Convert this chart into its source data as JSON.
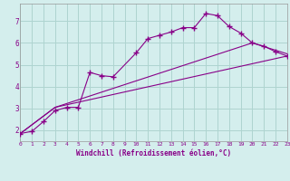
{
  "background_color": "#d4eeed",
  "grid_color": "#aed4d0",
  "line_color": "#880088",
  "marker": "+",
  "xlabel": "Windchill (Refroidissement éolien,°C)",
  "xlim": [
    0,
    23
  ],
  "ylim": [
    1.5,
    7.8
  ],
  "yticks": [
    2,
    3,
    4,
    5,
    6,
    7
  ],
  "xticks": [
    0,
    1,
    2,
    3,
    4,
    5,
    6,
    7,
    8,
    9,
    10,
    11,
    12,
    13,
    14,
    15,
    16,
    17,
    18,
    19,
    20,
    21,
    22,
    23
  ],
  "series1_x": [
    0,
    1,
    2,
    3,
    4,
    5,
    6,
    7,
    8,
    10,
    11,
    12,
    13,
    14,
    15,
    16,
    17,
    18,
    19,
    20,
    21,
    22,
    23
  ],
  "series1_y": [
    1.85,
    1.95,
    2.4,
    2.9,
    3.05,
    3.05,
    4.65,
    4.5,
    4.45,
    5.55,
    6.2,
    6.35,
    6.5,
    6.7,
    6.7,
    7.35,
    7.25,
    6.75,
    6.45,
    6.0,
    5.85,
    5.6,
    5.4
  ],
  "series2_x": [
    0,
    3,
    23
  ],
  "series2_y": [
    1.85,
    3.05,
    5.4
  ],
  "series3_x": [
    0,
    3,
    20,
    23
  ],
  "series3_y": [
    1.85,
    3.05,
    6.0,
    5.5
  ]
}
